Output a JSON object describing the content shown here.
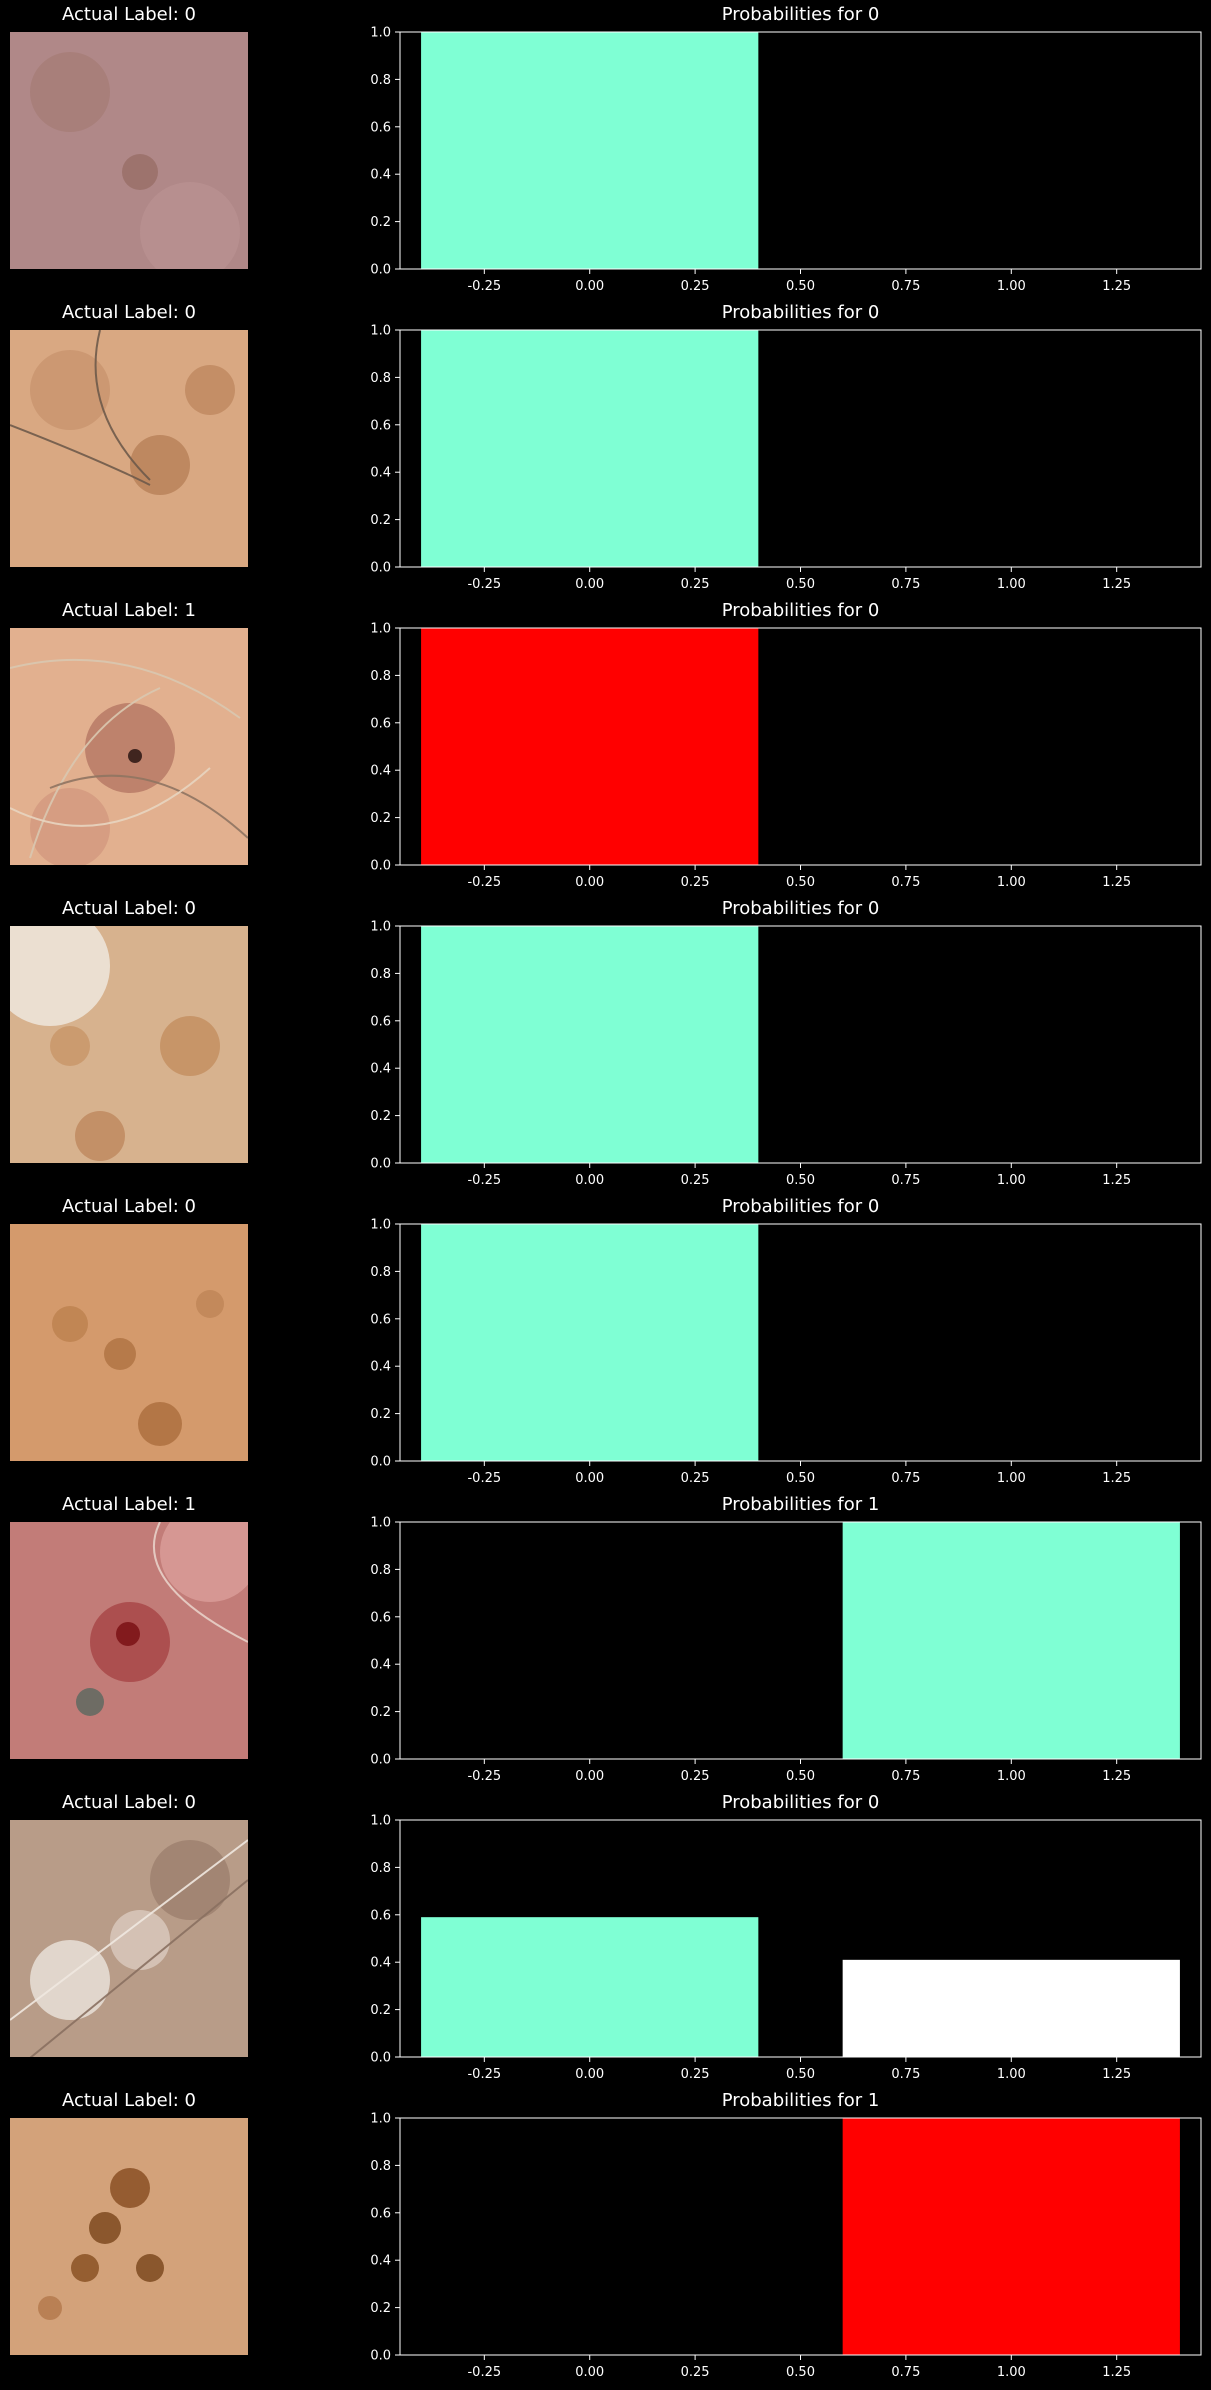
{
  "colors": {
    "background": "#000000",
    "foreground": "#ffffff",
    "correct": "#7fffd4",
    "wrong": "#ff0000",
    "other": "#ffffff"
  },
  "rows": [
    {
      "image_title": "Actual Label: 0",
      "plot_title": "Probabilities for 0",
      "image_icon": "skin-lesion-photo-pinkish"
    },
    {
      "image_title": "Actual Label: 0",
      "plot_title": "Probabilities for 0",
      "image_icon": "skin-lesion-photo-hair"
    },
    {
      "image_title": "Actual Label: 1",
      "plot_title": "Probabilities for 0",
      "image_icon": "skin-lesion-photo-dark-spot-hair"
    },
    {
      "image_title": "Actual Label: 0",
      "plot_title": "Probabilities for 0",
      "image_icon": "skin-lesion-photo-pale"
    },
    {
      "image_title": "Actual Label: 0",
      "plot_title": "Probabilities for 0",
      "image_icon": "skin-lesion-photo-freckles"
    },
    {
      "image_title": "Actual Label: 1",
      "plot_title": "Probabilities for 1",
      "image_icon": "skin-lesion-photo-red-lesion"
    },
    {
      "image_title": "Actual Label: 0",
      "plot_title": "Probabilities for 0",
      "image_icon": "skin-lesion-photo-streaked"
    },
    {
      "image_title": "Actual Label: 0",
      "plot_title": "Probabilities for 1",
      "image_icon": "skin-lesion-photo-brown-spots"
    }
  ],
  "chart_data": [
    {
      "type": "bar",
      "title": "Probabilities for 0",
      "x": [
        0,
        1
      ],
      "values": [
        1.0,
        0.0
      ],
      "bar_colors": [
        "#7fffd4",
        "#ffffff"
      ],
      "xlim": [
        -0.45,
        1.45
      ],
      "ylim": [
        0,
        1
      ],
      "xticks": [
        "-0.25",
        "0.00",
        "0.25",
        "0.50",
        "0.75",
        "1.00",
        "1.25"
      ],
      "yticks": [
        "0.0",
        "0.2",
        "0.4",
        "0.6",
        "0.8",
        "1.0"
      ]
    },
    {
      "type": "bar",
      "title": "Probabilities for 0",
      "x": [
        0,
        1
      ],
      "values": [
        1.0,
        0.0
      ],
      "bar_colors": [
        "#7fffd4",
        "#ffffff"
      ],
      "xlim": [
        -0.45,
        1.45
      ],
      "ylim": [
        0,
        1
      ],
      "xticks": [
        "-0.25",
        "0.00",
        "0.25",
        "0.50",
        "0.75",
        "1.00",
        "1.25"
      ],
      "yticks": [
        "0.0",
        "0.2",
        "0.4",
        "0.6",
        "0.8",
        "1.0"
      ]
    },
    {
      "type": "bar",
      "title": "Probabilities for 0",
      "x": [
        0,
        1
      ],
      "values": [
        1.0,
        0.0
      ],
      "bar_colors": [
        "#ff0000",
        "#ffffff"
      ],
      "xlim": [
        -0.45,
        1.45
      ],
      "ylim": [
        0,
        1
      ],
      "xticks": [
        "-0.25",
        "0.00",
        "0.25",
        "0.50",
        "0.75",
        "1.00",
        "1.25"
      ],
      "yticks": [
        "0.0",
        "0.2",
        "0.4",
        "0.6",
        "0.8",
        "1.0"
      ]
    },
    {
      "type": "bar",
      "title": "Probabilities for 0",
      "x": [
        0,
        1
      ],
      "values": [
        1.0,
        0.0
      ],
      "bar_colors": [
        "#7fffd4",
        "#ffffff"
      ],
      "xlim": [
        -0.45,
        1.45
      ],
      "ylim": [
        0,
        1
      ],
      "xticks": [
        "-0.25",
        "0.00",
        "0.25",
        "0.50",
        "0.75",
        "1.00",
        "1.25"
      ],
      "yticks": [
        "0.0",
        "0.2",
        "0.4",
        "0.6",
        "0.8",
        "1.0"
      ]
    },
    {
      "type": "bar",
      "title": "Probabilities for 0",
      "x": [
        0,
        1
      ],
      "values": [
        1.0,
        0.0
      ],
      "bar_colors": [
        "#7fffd4",
        "#ffffff"
      ],
      "xlim": [
        -0.45,
        1.45
      ],
      "ylim": [
        0,
        1
      ],
      "xticks": [
        "-0.25",
        "0.00",
        "0.25",
        "0.50",
        "0.75",
        "1.00",
        "1.25"
      ],
      "yticks": [
        "0.0",
        "0.2",
        "0.4",
        "0.6",
        "0.8",
        "1.0"
      ]
    },
    {
      "type": "bar",
      "title": "Probabilities for 1",
      "x": [
        0,
        1
      ],
      "values": [
        0.0,
        1.0
      ],
      "bar_colors": [
        "#ffffff",
        "#7fffd4"
      ],
      "xlim": [
        -0.45,
        1.45
      ],
      "ylim": [
        0,
        1
      ],
      "xticks": [
        "-0.25",
        "0.00",
        "0.25",
        "0.50",
        "0.75",
        "1.00",
        "1.25"
      ],
      "yticks": [
        "0.0",
        "0.2",
        "0.4",
        "0.6",
        "0.8",
        "1.0"
      ]
    },
    {
      "type": "bar",
      "title": "Probabilities for 0",
      "x": [
        0,
        1
      ],
      "values": [
        0.59,
        0.41
      ],
      "bar_colors": [
        "#7fffd4",
        "#ffffff"
      ],
      "xlim": [
        -0.45,
        1.45
      ],
      "ylim": [
        0,
        1
      ],
      "xticks": [
        "-0.25",
        "0.00",
        "0.25",
        "0.50",
        "0.75",
        "1.00",
        "1.25"
      ],
      "yticks": [
        "0.0",
        "0.2",
        "0.4",
        "0.6",
        "0.8",
        "1.0"
      ]
    },
    {
      "type": "bar",
      "title": "Probabilities for 1",
      "x": [
        0,
        1
      ],
      "values": [
        0.0,
        1.0
      ],
      "bar_colors": [
        "#ffffff",
        "#ff0000"
      ],
      "xlim": [
        -0.45,
        1.45
      ],
      "ylim": [
        0,
        1
      ],
      "xticks": [
        "-0.25",
        "0.00",
        "0.25",
        "0.50",
        "0.75",
        "1.00",
        "1.25"
      ],
      "yticks": [
        "0.0",
        "0.2",
        "0.4",
        "0.6",
        "0.8",
        "1.0"
      ]
    }
  ]
}
